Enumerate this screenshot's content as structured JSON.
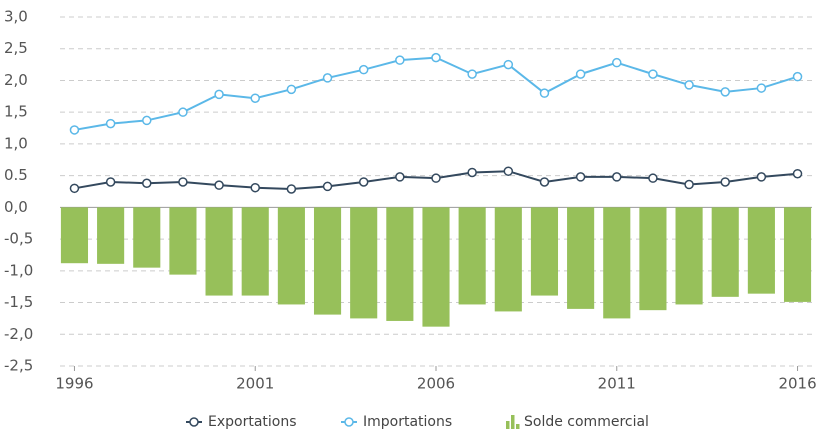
{
  "chart_data": {
    "type": "bar-line",
    "x": [
      1996,
      1997,
      1998,
      1999,
      2000,
      2001,
      2002,
      2003,
      2004,
      2005,
      2006,
      2007,
      2008,
      2009,
      2010,
      2011,
      2012,
      2013,
      2014,
      2015,
      2016
    ],
    "xlim": [
      1995.6,
      2016.4
    ],
    "xticks": [
      1996,
      2001,
      2006,
      2011,
      2016
    ],
    "ylim": [
      -2.5,
      3.0
    ],
    "yticks": [
      {
        "value": 3.0,
        "label": "3,0"
      },
      {
        "value": 2.5,
        "label": "2,5"
      },
      {
        "value": 2.0,
        "label": "2,0"
      },
      {
        "value": 1.5,
        "label": "1,5"
      },
      {
        "value": 1.0,
        "label": "1,0"
      },
      0.5,
      {
        "value": 0,
        "label": "0,0"
      },
      {
        "value": -0.5,
        "label": "-0,5"
      },
      {
        "value": -1.0,
        "label": "-1,0"
      },
      {
        "value": -1.5,
        "label": "-1,5"
      },
      {
        "value": -2.0,
        "label": "-2,0"
      },
      {
        "value": -2.5,
        "label": "-2,5"
      }
    ],
    "grid": true,
    "legend": "bottom",
    "series": [
      {
        "name": "Exportations",
        "type": "line",
        "color": "#34495e",
        "values": [
          0.3,
          0.4,
          0.38,
          0.4,
          0.35,
          0.31,
          0.29,
          0.33,
          0.4,
          0.48,
          0.46,
          0.55,
          0.57,
          0.4,
          0.48,
          0.48,
          0.46,
          0.36,
          0.4,
          0.48,
          0.53
        ]
      },
      {
        "name": "Importations",
        "type": "line",
        "color": "#5bb8e8",
        "values": [
          1.22,
          1.32,
          1.37,
          1.5,
          1.78,
          1.72,
          1.86,
          2.04,
          2.17,
          2.32,
          2.36,
          2.1,
          2.25,
          1.8,
          2.1,
          2.28,
          2.1,
          1.93,
          1.82,
          1.88,
          2.06
        ]
      },
      {
        "name": "Solde commercial",
        "type": "bar",
        "color": "#97c05a",
        "values": [
          -0.88,
          -0.89,
          -0.95,
          -1.06,
          -1.39,
          -1.39,
          -1.53,
          -1.69,
          -1.75,
          -1.79,
          -1.88,
          -1.53,
          -1.64,
          -1.39,
          -1.6,
          -1.75,
          -1.62,
          -1.53,
          -1.41,
          -1.36,
          -1.49
        ]
      }
    ]
  }
}
